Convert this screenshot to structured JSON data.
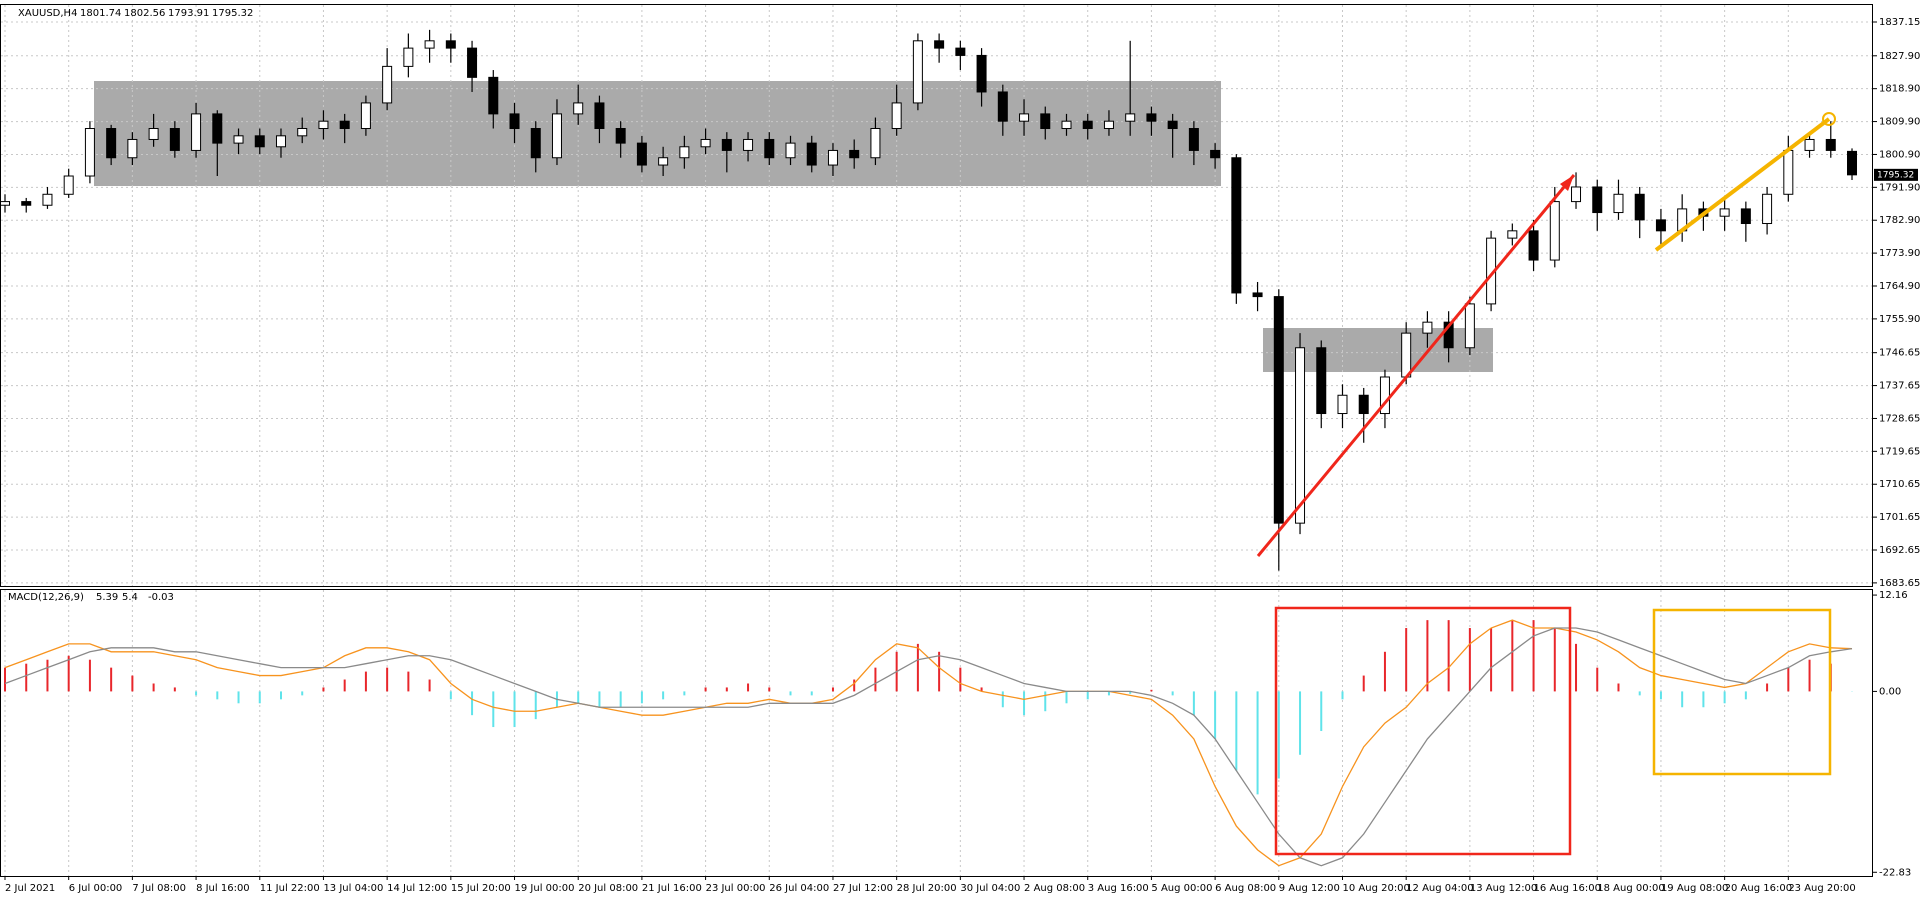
{
  "chart_data": [
    {
      "type": "candlestick",
      "title": "XAUUSD,H4",
      "ylim": [
        1682.8,
        1841.8
      ],
      "yticks": [
        1683.65,
        1692.65,
        1701.65,
        1710.65,
        1719.65,
        1728.65,
        1737.65,
        1746.65,
        {
          "value": 1755.9,
          "label": "1755.90"
        },
        {
          "value": 1764.9,
          "label": "1764.90"
        },
        {
          "value": 1773.9,
          "label": "1773.90"
        },
        {
          "value": 1782.9,
          "label": "1782.90"
        },
        {
          "value": 1791.9,
          "label": "1791.90"
        },
        {
          "value": 1800.9,
          "label": "1800.90"
        },
        {
          "value": 1809.9,
          "label": "1809.90"
        },
        {
          "value": 1818.9,
          "label": "1818.90"
        },
        {
          "value": 1827.9,
          "label": "1827.90"
        },
        1837.15
      ],
      "up_color": "#ffffff",
      "down_color": "#000000",
      "grid": true,
      "ohlc": [
        [
          1787,
          1790,
          1785,
          1788
        ],
        [
          1788,
          1789,
          1785,
          1787
        ],
        [
          1787,
          1792,
          1786,
          1790
        ],
        [
          1790,
          1797,
          1789,
          1795
        ],
        [
          1795,
          1810,
          1793,
          1808
        ],
        [
          1808,
          1809,
          1798,
          1800
        ],
        [
          1800,
          1807,
          1798,
          1805
        ],
        [
          1805,
          1812,
          1803,
          1808
        ],
        [
          1808,
          1810,
          1800,
          1802
        ],
        [
          1802,
          1815,
          1800,
          1812
        ],
        [
          1812,
          1813,
          1795,
          1804
        ],
        [
          1804,
          1808,
          1801,
          1806
        ],
        [
          1806,
          1808,
          1801,
          1803
        ],
        [
          1803,
          1808,
          1800,
          1806
        ],
        [
          1806,
          1811,
          1804,
          1808
        ],
        [
          1808,
          1813,
          1805,
          1810
        ],
        [
          1810,
          1812,
          1804,
          1808
        ],
        [
          1808,
          1817,
          1806,
          1815
        ],
        [
          1815,
          1830,
          1813,
          1825
        ],
        [
          1825,
          1834,
          1822,
          1830
        ],
        [
          1830,
          1835,
          1826,
          1832
        ],
        [
          1832,
          1834,
          1826,
          1830
        ],
        [
          1830,
          1832,
          1818,
          1822
        ],
        [
          1822,
          1824,
          1808,
          1812
        ],
        [
          1812,
          1815,
          1804,
          1808
        ],
        [
          1808,
          1810,
          1796,
          1800
        ],
        [
          1800,
          1816,
          1798,
          1812
        ],
        [
          1812,
          1820,
          1809,
          1815
        ],
        [
          1815,
          1817,
          1804,
          1808
        ],
        [
          1808,
          1810,
          1800,
          1804
        ],
        [
          1804,
          1806,
          1796,
          1798
        ],
        [
          1798,
          1803,
          1795,
          1800
        ],
        [
          1800,
          1806,
          1797,
          1803
        ],
        [
          1803,
          1808,
          1801,
          1805
        ],
        [
          1805,
          1807,
          1796,
          1802
        ],
        [
          1802,
          1807,
          1799,
          1805
        ],
        [
          1805,
          1807,
          1798,
          1800
        ],
        [
          1800,
          1806,
          1798,
          1804
        ],
        [
          1804,
          1806,
          1796,
          1798
        ],
        [
          1798,
          1804,
          1795,
          1802
        ],
        [
          1802,
          1805,
          1797,
          1800
        ],
        [
          1800,
          1811,
          1798,
          1808
        ],
        [
          1808,
          1820,
          1806,
          1815
        ],
        [
          1815,
          1834,
          1813,
          1832
        ],
        [
          1832,
          1834,
          1826,
          1830
        ],
        [
          1830,
          1832,
          1824,
          1828
        ],
        [
          1828,
          1830,
          1814,
          1818
        ],
        [
          1818,
          1820,
          1806,
          1810
        ],
        [
          1810,
          1816,
          1806,
          1812
        ],
        [
          1812,
          1814,
          1805,
          1808
        ],
        [
          1808,
          1812,
          1806,
          1810
        ],
        [
          1810,
          1812,
          1805,
          1808
        ],
        [
          1808,
          1813,
          1806,
          1810
        ],
        [
          1810,
          1832,
          1806,
          1812
        ],
        [
          1812,
          1814,
          1806,
          1810
        ],
        [
          1810,
          1812,
          1800,
          1808
        ],
        [
          1808,
          1810,
          1798,
          1802
        ],
        [
          1802,
          1804,
          1797,
          1800
        ],
        [
          1800,
          1801,
          1760,
          1763
        ],
        [
          1763,
          1766,
          1758,
          1762
        ],
        [
          1762,
          1764,
          1687,
          1700
        ],
        [
          1700,
          1752,
          1697,
          1748
        ],
        [
          1748,
          1750,
          1726,
          1730
        ],
        [
          1730,
          1738,
          1726,
          1735
        ],
        [
          1735,
          1737,
          1722,
          1730
        ],
        [
          1730,
          1742,
          1726,
          1740
        ],
        [
          1740,
          1755,
          1738,
          1752
        ],
        [
          1752,
          1758,
          1748,
          1755
        ],
        [
          1755,
          1758,
          1744,
          1748
        ],
        [
          1748,
          1762,
          1746,
          1760
        ],
        [
          1760,
          1780,
          1758,
          1778
        ],
        [
          1778,
          1782,
          1776,
          1780
        ],
        [
          1780,
          1783,
          1769,
          1772
        ],
        [
          1772,
          1792,
          1770,
          1788
        ],
        [
          1788,
          1796,
          1786,
          1792
        ],
        [
          1792,
          1794,
          1780,
          1785
        ],
        [
          1785,
          1794,
          1783,
          1790
        ],
        [
          1790,
          1792,
          1778,
          1783
        ],
        [
          1783,
          1786,
          1776,
          1780
        ],
        [
          1780,
          1790,
          1777,
          1786
        ],
        [
          1786,
          1788,
          1780,
          1784
        ],
        [
          1784,
          1789,
          1780,
          1786
        ],
        [
          1786,
          1788,
          1777,
          1782
        ],
        [
          1782,
          1792,
          1779,
          1790
        ],
        [
          1790,
          1806,
          1788,
          1802
        ],
        [
          1802,
          1807,
          1800,
          1805
        ],
        [
          1805,
          1810,
          1800,
          1802
        ],
        [
          1801.74,
          1802.56,
          1793.91,
          1795.32
        ]
      ]
    },
    {
      "type": "macd",
      "title": "MACD(12,26,9)",
      "readout": [
        5.39,
        5.4,
        -0.03
      ],
      "ylim": [
        -23.3,
        12.8
      ],
      "yticks": [
        12.16,
        {
          "value": 0,
          "label": "0.00"
        },
        -22.83
      ],
      "histogram": {
        "positive_color": "#e8262b",
        "negative_color": "#5fe3ea",
        "values": [
          3,
          3.5,
          4,
          4.5,
          4,
          3,
          2,
          1,
          0.5,
          -0.5,
          -1,
          -1.5,
          -1.5,
          -1,
          -0.5,
          0.5,
          1.5,
          2.5,
          3,
          2.5,
          1.5,
          -1,
          -3,
          -4.5,
          -4.5,
          -3.5,
          -2,
          -1.5,
          -2,
          -2,
          -1.5,
          -1,
          -0.5,
          0.5,
          0.5,
          1,
          0.5,
          -0.5,
          -0.5,
          0.5,
          1.5,
          3,
          5,
          6,
          5,
          3,
          0.5,
          -2,
          -3,
          -2.5,
          -1.5,
          -1,
          -0.5,
          -0.3,
          0.2,
          -0.5,
          -3,
          -6,
          -10,
          -13,
          -11,
          -8,
          -5,
          -1,
          2,
          5,
          8,
          9,
          9,
          8,
          8,
          9,
          9,
          8,
          6,
          3,
          1,
          -0.5,
          -1,
          -2,
          -2,
          -1.5,
          -1,
          1,
          3,
          4,
          3.5,
          -0.03
        ]
      },
      "lines": [
        {
          "color": "#f7931e",
          "values": [
            3,
            4,
            5,
            6,
            6,
            5,
            5,
            5,
            4.5,
            4,
            3,
            2.5,
            2,
            2,
            2.5,
            3,
            4.5,
            5.5,
            5.5,
            5,
            4,
            1,
            -1,
            -2,
            -2.5,
            -2.5,
            -2,
            -1.5,
            -2,
            -2.5,
            -3,
            -3,
            -2.5,
            -2,
            -1.5,
            -1.5,
            -1,
            -1.5,
            -1.5,
            -1,
            1,
            4,
            6,
            5.5,
            3,
            1,
            0,
            -0.5,
            -1,
            -0.5,
            0,
            0,
            0,
            -0.5,
            -1,
            -3,
            -6,
            -12,
            -17,
            -20,
            -22,
            -21,
            -18,
            -12,
            -7,
            -4,
            -2,
            1,
            3,
            6,
            8,
            9,
            8,
            8,
            7.5,
            6.5,
            5,
            3,
            2,
            1.5,
            1,
            0.5,
            1,
            3,
            5,
            6,
            5.5,
            5.39
          ]
        },
        {
          "color": "#8a8a8a",
          "values": [
            1,
            2,
            3,
            4,
            5,
            5.5,
            5.5,
            5.5,
            5,
            5,
            4.5,
            4,
            3.5,
            3,
            3,
            3,
            3,
            3.5,
            4,
            4.5,
            4.5,
            4,
            3,
            2,
            1,
            0,
            -1,
            -1.5,
            -2,
            -2,
            -2,
            -2,
            -2,
            -2,
            -2,
            -2,
            -1.5,
            -1.5,
            -1.5,
            -1.5,
            -0.5,
            1,
            2.5,
            4,
            4.5,
            4,
            3,
            2,
            1,
            0.5,
            0,
            0,
            0,
            0,
            -0.5,
            -1.5,
            -3,
            -6,
            -10,
            -14,
            -18,
            -21,
            -22,
            -21,
            -18,
            -14,
            -10,
            -6,
            -3,
            0,
            3,
            5,
            7,
            8,
            8,
            7.5,
            6.5,
            5.5,
            4.5,
            3.5,
            2.5,
            1.5,
            1,
            2,
            3,
            4.5,
            5,
            5.4
          ]
        }
      ]
    }
  ],
  "time_axis": {
    "labels": [
      "2 Jul 2021",
      "6 Jul 00:00",
      "7 Jul 08:00",
      "8 Jul 16:00",
      "11 Jul 22:00",
      "13 Jul 04:00",
      "14 Jul 12:00",
      "15 Jul 20:00",
      "19 Jul 00:00",
      "20 Jul 08:00",
      "21 Jul 16:00",
      "23 Jul 00:00",
      "26 Jul 04:00",
      "27 Jul 12:00",
      "28 Jul 20:00",
      "30 Jul 04:00",
      "2 Aug 08:00",
      "3 Aug 16:00",
      "5 Aug 00:00",
      "6 Aug 08:00",
      "9 Aug 12:00",
      "10 Aug 20:00",
      "12 Aug 04:00",
      "13 Aug 12:00",
      "16 Aug 16:00",
      "18 Aug 00:00",
      "19 Aug 08:00",
      "20 Aug 16:00",
      "23 Aug 20:00"
    ]
  }
}
